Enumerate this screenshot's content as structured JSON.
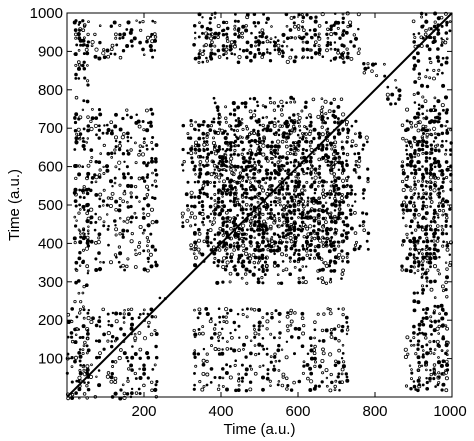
{
  "chart_data": {
    "type": "scatter",
    "title": "",
    "xlabel": "Time (a.u.)",
    "ylabel": "Time (a.u.)",
    "xlim": [
      0,
      1000
    ],
    "ylim": [
      0,
      1000
    ],
    "xticks": [
      200,
      400,
      600,
      800,
      1000
    ],
    "yticks": [
      100,
      200,
      300,
      400,
      500,
      600,
      700,
      800,
      900,
      1000
    ],
    "grid": false,
    "legend": "none",
    "color": "#000000",
    "diagonal": [
      [
        0,
        0
      ],
      [
        1000,
        1000
      ]
    ],
    "recurrence_blocks": [
      {
        "x": [
          0,
          230
        ],
        "y": [
          0,
          230
        ]
      },
      {
        "x": [
          330,
          730
        ],
        "y": [
          330,
          730
        ]
      },
      {
        "x": [
          830,
          870
        ],
        "y": [
          760,
          830
        ]
      },
      {
        "x": [
          760,
          830
        ],
        "y": [
          830,
          870
        ]
      },
      {
        "x": [
          920,
          1000
        ],
        "y": [
          920,
          1000
        ]
      },
      {
        "x": [
          240,
          260
        ],
        "y": [
          240,
          260
        ]
      },
      {
        "x": [
          20,
          230
        ],
        "y": [
          330,
          750
        ]
      },
      {
        "x": [
          330,
          730
        ],
        "y": [
          20,
          230
        ]
      },
      {
        "x": [
          20,
          230
        ],
        "y": [
          880,
          980
        ]
      },
      {
        "x": [
          880,
          990
        ],
        "y": [
          20,
          230
        ]
      },
      {
        "x": [
          330,
          730
        ],
        "y": [
          870,
          960
        ]
      },
      {
        "x": [
          870,
          960
        ],
        "y": [
          330,
          730
        ]
      },
      {
        "x": [
          880,
          1000
        ],
        "y": [
          330,
          760
        ]
      },
      {
        "x": [
          330,
          760
        ],
        "y": [
          880,
          1000
        ]
      },
      {
        "x": [
          300,
          780
        ],
        "y": [
          380,
          720
        ]
      },
      {
        "x": [
          380,
          720
        ],
        "y": [
          300,
          780
        ]
      },
      {
        "x": [
          20,
          60
        ],
        "y": [
          20,
          980
        ]
      },
      {
        "x": [
          900,
          990
        ],
        "y": [
          20,
          980
        ]
      }
    ]
  }
}
